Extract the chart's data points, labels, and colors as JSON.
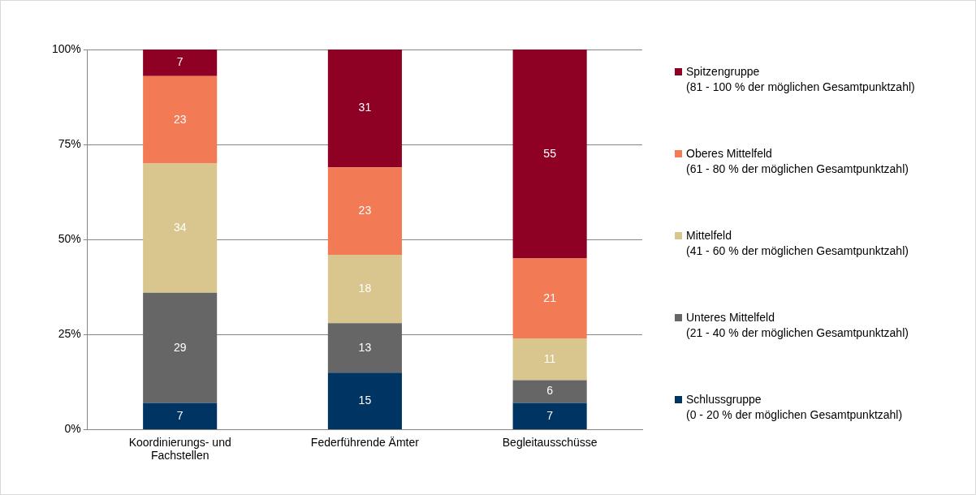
{
  "chart_data": {
    "type": "bar",
    "stacked": true,
    "categories": [
      "Koordinierungs- und\nFachstellen",
      "Federführende Ämter",
      "Begleitausschüsse"
    ],
    "series": [
      {
        "name": "Schlussgruppe\n(0 - 20 % der möglichen Gesamtpunktzahl)",
        "color": "#003462",
        "values": [
          7,
          15,
          7
        ]
      },
      {
        "name": "Unteres Mittelfeld\n(21 - 40 % der möglichen Gesamtpunktzahl)",
        "color": "#666666",
        "values": [
          29,
          13,
          6
        ]
      },
      {
        "name": "Mittelfeld\n(41 - 60 % der möglichen Gesamtpunktzahl)",
        "color": "#d9c58e",
        "values": [
          34,
          18,
          11
        ]
      },
      {
        "name": "Oberes Mittelfeld\n(61 - 80 % der möglichen Gesamtpunktzahl)",
        "color": "#f27a55",
        "values": [
          23,
          23,
          21
        ]
      },
      {
        "name": "Spitzengruppe\n(81 - 100 % der möglichen Gesamtpunktzahl)",
        "color": "#8e0024",
        "values": [
          7,
          31,
          55
        ]
      }
    ],
    "ylim": [
      0,
      100
    ],
    "yticks": [
      {
        "value": 0,
        "label": "0%"
      },
      {
        "value": 25,
        "label": "25%"
      },
      {
        "value": 50,
        "label": "50%"
      },
      {
        "value": 75,
        "label": "75%"
      },
      {
        "value": 100,
        "label": "100%"
      }
    ],
    "grid": "y",
    "data_labels": true,
    "legend": "right"
  }
}
